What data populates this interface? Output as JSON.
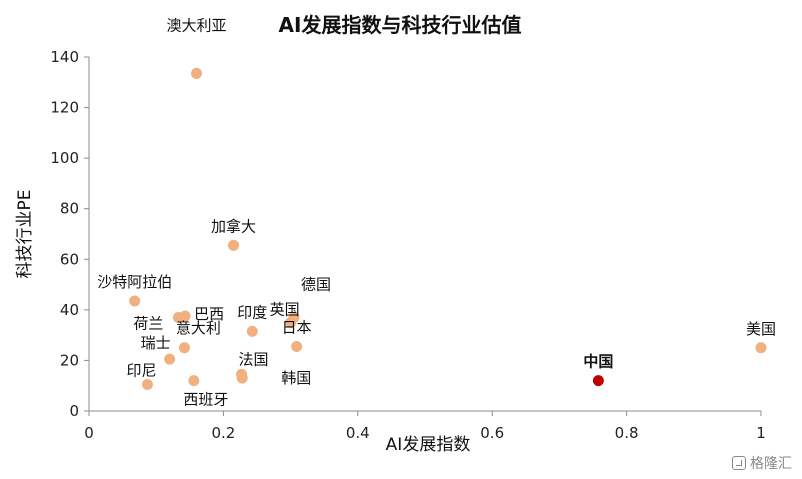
{
  "chart_data": {
    "type": "scatter",
    "title": "AI发展指数与科技行业估值",
    "xlabel": "AI发展指数",
    "ylabel": "科技行业PE",
    "xlim": [
      0,
      1
    ],
    "ylim": [
      0,
      140
    ],
    "xticks": [
      0,
      0.2,
      0.4,
      0.6,
      0.8,
      1
    ],
    "xtick_labels": [
      "0",
      "0.2",
      "0.4",
      "0.6",
      "0.8",
      "1"
    ],
    "yticks": [
      0,
      20,
      40,
      60,
      80,
      100,
      120,
      140
    ],
    "ytick_labels": [
      "0",
      "20",
      "40",
      "60",
      "80",
      "100",
      "120",
      "140"
    ],
    "grid": false,
    "colors": {
      "default": "#f0b080",
      "highlight": "#c00000"
    },
    "points": [
      {
        "label": "澳大利亚",
        "x": 0.16,
        "y": 133.5
      },
      {
        "label": "加拿大",
        "x": 0.215,
        "y": 65.5
      },
      {
        "label": "沙特阿拉伯",
        "x": 0.068,
        "y": 43.5
      },
      {
        "label": "荷兰",
        "x": 0.133,
        "y": 37
      },
      {
        "label": "巴西",
        "x": 0.143,
        "y": 37.5
      },
      {
        "label": "印度",
        "x": 0.243,
        "y": 31.5
      },
      {
        "label": "英国",
        "x": 0.3,
        "y": 35
      },
      {
        "label": "德国",
        "x": 0.305,
        "y": 37
      },
      {
        "label": "日本",
        "x": 0.309,
        "y": 25.5
      },
      {
        "label": "意大利",
        "x": 0.142,
        "y": 25
      },
      {
        "label": "瑞士",
        "x": 0.12,
        "y": 20.5
      },
      {
        "label": "印尼",
        "x": 0.087,
        "y": 10.5
      },
      {
        "label": "西班牙",
        "x": 0.156,
        "y": 12
      },
      {
        "label": "法国",
        "x": 0.227,
        "y": 14.5
      },
      {
        "label": "韩国",
        "x": 0.228,
        "y": 13
      },
      {
        "label": "美国",
        "x": 1.0,
        "y": 25
      },
      {
        "label": "中国",
        "x": 0.758,
        "y": 12,
        "highlight": true
      }
    ]
  },
  "watermark": {
    "text": "格隆汇"
  }
}
